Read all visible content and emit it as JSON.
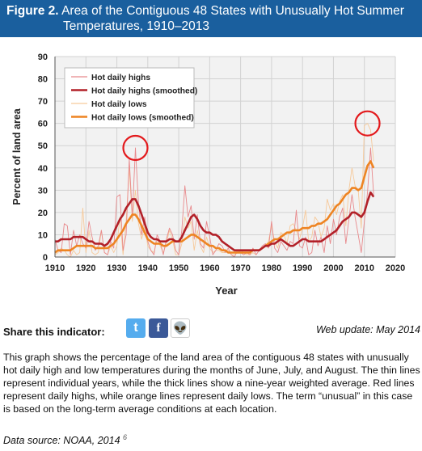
{
  "header": {
    "figure_number": "Figure 2.",
    "title_line1": "Area of the Contiguous 48 States with Unusually Hot Summer",
    "title_line2": "Temperatures, 1910–2013"
  },
  "chart_data": {
    "type": "line",
    "xlabel": "Year",
    "ylabel": "Percent of land area",
    "xlim": [
      1910,
      2020
    ],
    "ylim": [
      0,
      90
    ],
    "x_ticks": [
      1910,
      1920,
      1930,
      1940,
      1950,
      1960,
      1970,
      1980,
      1990,
      2000,
      2010,
      2020
    ],
    "y_ticks": [
      0,
      10,
      20,
      30,
      40,
      50,
      60,
      70,
      80,
      90
    ],
    "grid": true,
    "legend_placement": "top-left",
    "colors": {
      "hot_highs": "#e8898c",
      "hot_highs_smoothed": "#b22028",
      "hot_lows": "#f6c99a",
      "hot_lows_smoothed": "#ee8422",
      "highlight_circle": "#e3191c",
      "plot_background": "#f2f2f2",
      "grid": "#d2d2d2"
    },
    "highlight_circles": [
      {
        "year": 1936,
        "value": 49
      },
      {
        "year": 2011,
        "value": 60
      }
    ],
    "series": [
      {
        "name": "Hot daily highs",
        "style": "thin",
        "x": [
          1910,
          1911,
          1912,
          1913,
          1914,
          1915,
          1916,
          1917,
          1918,
          1919,
          1920,
          1921,
          1922,
          1923,
          1924,
          1925,
          1926,
          1927,
          1928,
          1929,
          1930,
          1931,
          1932,
          1933,
          1934,
          1935,
          1936,
          1937,
          1938,
          1939,
          1940,
          1941,
          1942,
          1943,
          1944,
          1945,
          1946,
          1947,
          1948,
          1949,
          1950,
          1951,
          1952,
          1953,
          1954,
          1955,
          1956,
          1957,
          1958,
          1959,
          1960,
          1961,
          1962,
          1963,
          1964,
          1965,
          1966,
          1967,
          1968,
          1969,
          1970,
          1971,
          1972,
          1973,
          1974,
          1975,
          1976,
          1977,
          1978,
          1979,
          1980,
          1981,
          1982,
          1983,
          1984,
          1985,
          1986,
          1987,
          1988,
          1989,
          1990,
          1991,
          1992,
          1993,
          1994,
          1995,
          1996,
          1997,
          1998,
          1999,
          2000,
          2001,
          2002,
          2003,
          2004,
          2005,
          2006,
          2007,
          2008,
          2009,
          2010,
          2011,
          2012,
          2013
        ],
        "values": [
          8,
          3,
          2,
          15,
          14,
          1,
          12,
          5,
          10,
          6,
          4,
          16,
          9,
          3,
          5,
          12,
          2,
          1,
          7,
          4,
          27,
          28,
          3,
          10,
          44,
          18,
          49,
          24,
          10,
          18,
          7,
          3,
          1,
          10,
          7,
          1,
          8,
          13,
          10,
          3,
          1,
          12,
          32,
          18,
          23,
          8,
          19,
          6,
          4,
          16,
          9,
          1,
          3,
          6,
          5,
          2,
          4,
          1,
          0,
          3,
          2,
          1,
          2,
          1,
          4,
          1,
          3,
          5,
          6,
          4,
          16,
          4,
          2,
          7,
          5,
          3,
          7,
          6,
          21,
          5,
          4,
          9,
          1,
          2,
          12,
          5,
          9,
          2,
          14,
          6,
          17,
          10,
          18,
          22,
          6,
          17,
          28,
          18,
          10,
          2,
          16,
          29,
          49,
          28
        ]
      },
      {
        "name": "Hot daily highs (smoothed)",
        "style": "thick",
        "x": [
          1910,
          1911,
          1912,
          1913,
          1914,
          1915,
          1916,
          1917,
          1918,
          1919,
          1920,
          1921,
          1922,
          1923,
          1924,
          1925,
          1926,
          1927,
          1928,
          1929,
          1930,
          1931,
          1932,
          1933,
          1934,
          1935,
          1936,
          1937,
          1938,
          1939,
          1940,
          1941,
          1942,
          1943,
          1944,
          1945,
          1946,
          1947,
          1948,
          1949,
          1950,
          1951,
          1952,
          1953,
          1954,
          1955,
          1956,
          1957,
          1958,
          1959,
          1960,
          1961,
          1962,
          1963,
          1964,
          1965,
          1966,
          1967,
          1968,
          1969,
          1970,
          1971,
          1972,
          1973,
          1974,
          1975,
          1976,
          1977,
          1978,
          1979,
          1980,
          1981,
          1982,
          1983,
          1984,
          1985,
          1986,
          1987,
          1988,
          1989,
          1990,
          1991,
          1992,
          1993,
          1994,
          1995,
          1996,
          1997,
          1998,
          1999,
          2000,
          2001,
          2002,
          2003,
          2004,
          2005,
          2006,
          2007,
          2008,
          2009,
          2010,
          2011,
          2012,
          2013
        ],
        "values": [
          7,
          7,
          8,
          8,
          8,
          8,
          9,
          9,
          9,
          9,
          8,
          7,
          7,
          6,
          6,
          6,
          5,
          6,
          8,
          11,
          14,
          17,
          19,
          22,
          24,
          26,
          26,
          23,
          19,
          15,
          11,
          9,
          8,
          8,
          7,
          7,
          7,
          8,
          8,
          7,
          7,
          9,
          12,
          15,
          18,
          19,
          17,
          14,
          12,
          11,
          11,
          10,
          10,
          9,
          7,
          6,
          5,
          4,
          3,
          3,
          3,
          3,
          3,
          3,
          3,
          3,
          3,
          4,
          5,
          5,
          6,
          6,
          7,
          8,
          7,
          6,
          5,
          5,
          6,
          7,
          8,
          8,
          7,
          7,
          7,
          7,
          7,
          8,
          9,
          10,
          11,
          12,
          14,
          16,
          17,
          18,
          20,
          20,
          19,
          18,
          20,
          25,
          29,
          27
        ]
      },
      {
        "name": "Hot daily lows",
        "style": "thin",
        "x": [
          1910,
          1911,
          1912,
          1913,
          1914,
          1915,
          1916,
          1917,
          1918,
          1919,
          1920,
          1921,
          1922,
          1923,
          1924,
          1925,
          1926,
          1927,
          1928,
          1929,
          1930,
          1931,
          1932,
          1933,
          1934,
          1935,
          1936,
          1937,
          1938,
          1939,
          1940,
          1941,
          1942,
          1943,
          1944,
          1945,
          1946,
          1947,
          1948,
          1949,
          1950,
          1951,
          1952,
          1953,
          1954,
          1955,
          1956,
          1957,
          1958,
          1959,
          1960,
          1961,
          1962,
          1963,
          1964,
          1965,
          1966,
          1967,
          1968,
          1969,
          1970,
          1971,
          1972,
          1973,
          1974,
          1975,
          1976,
          1977,
          1978,
          1979,
          1980,
          1981,
          1982,
          1983,
          1984,
          1985,
          1986,
          1987,
          1988,
          1989,
          1990,
          1991,
          1992,
          1993,
          1994,
          1995,
          1996,
          1997,
          1998,
          1999,
          2000,
          2001,
          2002,
          2003,
          2004,
          2005,
          2006,
          2007,
          2008,
          2009,
          2010,
          2011,
          2012,
          2013
        ],
        "values": [
          1,
          2,
          4,
          3,
          1,
          0,
          3,
          1,
          2,
          22,
          2,
          12,
          2,
          1,
          2,
          12,
          2,
          1,
          5,
          2,
          5,
          18,
          1,
          16,
          40,
          16,
          30,
          15,
          8,
          14,
          5,
          3,
          2,
          8,
          5,
          2,
          6,
          12,
          8,
          1,
          1,
          6,
          18,
          13,
          16,
          3,
          12,
          5,
          2,
          9,
          4,
          2,
          3,
          3,
          2,
          2,
          3,
          1,
          1,
          2,
          3,
          2,
          1,
          1,
          2,
          1,
          3,
          4,
          5,
          7,
          14,
          7,
          4,
          11,
          10,
          6,
          14,
          15,
          12,
          8,
          13,
          21,
          7,
          9,
          18,
          16,
          9,
          13,
          26,
          21,
          24,
          19,
          25,
          28,
          14,
          30,
          40,
          32,
          30,
          13,
          59,
          60,
          57,
          43
        ]
      },
      {
        "name": "Hot daily lows (smoothed)",
        "style": "thick",
        "x": [
          1910,
          1911,
          1912,
          1913,
          1914,
          1915,
          1916,
          1917,
          1918,
          1919,
          1920,
          1921,
          1922,
          1923,
          1924,
          1925,
          1926,
          1927,
          1928,
          1929,
          1930,
          1931,
          1932,
          1933,
          1934,
          1935,
          1936,
          1937,
          1938,
          1939,
          1940,
          1941,
          1942,
          1943,
          1944,
          1945,
          1946,
          1947,
          1948,
          1949,
          1950,
          1951,
          1952,
          1953,
          1954,
          1955,
          1956,
          1957,
          1958,
          1959,
          1960,
          1961,
          1962,
          1963,
          1964,
          1965,
          1966,
          1967,
          1968,
          1969,
          1970,
          1971,
          1972,
          1973,
          1974,
          1975,
          1976,
          1977,
          1978,
          1979,
          1980,
          1981,
          1982,
          1983,
          1984,
          1985,
          1986,
          1987,
          1988,
          1989,
          1990,
          1991,
          1992,
          1993,
          1994,
          1995,
          1996,
          1997,
          1998,
          1999,
          2000,
          2001,
          2002,
          2003,
          2004,
          2005,
          2006,
          2007,
          2008,
          2009,
          2010,
          2011,
          2012,
          2013
        ],
        "values": [
          2,
          3,
          3,
          3,
          3,
          3,
          4,
          5,
          5,
          5,
          5,
          5,
          5,
          4,
          4,
          4,
          4,
          4,
          5,
          6,
          8,
          10,
          12,
          15,
          17,
          19,
          19,
          17,
          14,
          11,
          8,
          7,
          6,
          6,
          6,
          5,
          5,
          6,
          7,
          7,
          7,
          7,
          8,
          9,
          10,
          10,
          9,
          8,
          7,
          6,
          5,
          5,
          4,
          4,
          3,
          3,
          2,
          2,
          2,
          2,
          2,
          2,
          2,
          2,
          3,
          3,
          3,
          4,
          5,
          6,
          7,
          8,
          8,
          9,
          10,
          11,
          11,
          12,
          12,
          12,
          13,
          13,
          13,
          14,
          14,
          15,
          15,
          16,
          17,
          19,
          21,
          23,
          24,
          26,
          28,
          29,
          31,
          31,
          30,
          31,
          36,
          41,
          43,
          40
        ]
      }
    ]
  },
  "share": {
    "label": "Share this indicator:",
    "twitter_glyph": "t",
    "facebook_glyph": "f",
    "reddit_glyph": "👽",
    "web_update": "Web update: May 2014"
  },
  "description": "This graph shows the percentage of the land area of the contiguous 48 states with unusually hot daily high and low temperatures during the months of June, July, and August. The thin lines represent individual years, while the thick lines show a nine-year weighted average. Red lines represent daily highs, while orange lines represent daily lows. The term “unusual” in this case is based on the long-term average conditions at each location.",
  "source": {
    "text": "Data source: NOAA, 2014",
    "footnote": "6"
  }
}
